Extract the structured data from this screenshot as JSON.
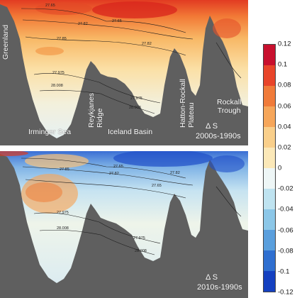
{
  "panels": [
    {
      "id": "top",
      "delta_label": "Δ S",
      "period_label": "2000s-1990s",
      "tone": "warm"
    },
    {
      "id": "bottom",
      "delta_label": "Δ S",
      "period_label": "2010s-1990s",
      "tone": "cool"
    }
  ],
  "region_labels": {
    "greenland": "Greenland",
    "reykjanes_ridge": "Reykjanes\nRidge",
    "hatton_rockall_plateau": "Hatton-Rockall\nPlateau",
    "rockall_trough": "Rockall\nTrough",
    "irminger_sea": "Irminger Sea",
    "iceland_basin": "Iceland Basin"
  },
  "contour_labels": [
    "27.65",
    "27.82",
    "27.85",
    "27.975",
    "28.008"
  ],
  "colorbar": {
    "ticks": [
      "0.12",
      "0.1",
      "0.08",
      "0.06",
      "0.04",
      "0.02",
      "0",
      "-0.02",
      "-0.04",
      "-0.06",
      "-0.08",
      "-0.1",
      "-0.12"
    ],
    "colors": [
      "#c8102e",
      "#e8452a",
      "#f07b3a",
      "#f6a65a",
      "#f9cf8b",
      "#fbe8b8",
      "#eef6f6",
      "#bfe3f0",
      "#8cc7e8",
      "#5a9fdd",
      "#2f6fd0",
      "#1440c0"
    ]
  }
}
